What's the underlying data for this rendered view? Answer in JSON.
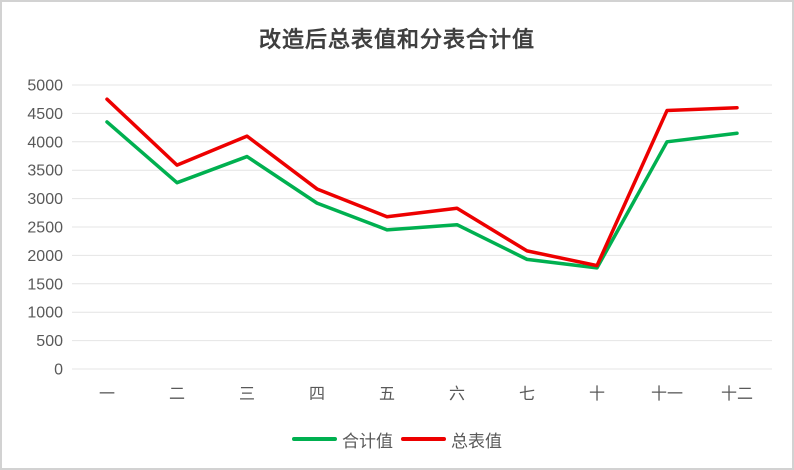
{
  "title": "改造后总表值和分表合计值",
  "colors": {
    "grid": "#e4e4e4",
    "axis_text": "#595959",
    "title_text": "#3f3f3f",
    "sum_series": "#00b050",
    "total_series": "#ed0000",
    "frame_border": "#d2d2d2",
    "background": "#ffffff"
  },
  "legend": {
    "position": "bottom",
    "items": [
      {
        "label": "合计值",
        "color": "#00b050"
      },
      {
        "label": "总表值",
        "color": "#ed0000"
      }
    ]
  },
  "chart_data": {
    "type": "line",
    "title": "改造后总表值和分表合计值",
    "categories": [
      "一",
      "二",
      "三",
      "四",
      "五",
      "六",
      "七",
      "十",
      "十一",
      "十二"
    ],
    "series": [
      {
        "name": "合计值",
        "slug": "subtotal-sum-line",
        "color": "#00b050",
        "values": [
          4350,
          3280,
          3740,
          2920,
          2450,
          2540,
          1930,
          1780,
          4000,
          4150
        ]
      },
      {
        "name": "总表值",
        "slug": "main-meter-line",
        "color": "#ed0000",
        "values": [
          4750,
          3590,
          4100,
          3170,
          2680,
          2830,
          2080,
          1820,
          4550,
          4600
        ]
      }
    ],
    "xlabel": "",
    "ylabel": "",
    "ylim": [
      0,
      5000
    ],
    "ytick_step": 500,
    "grid": true,
    "legend_position": "bottom"
  }
}
